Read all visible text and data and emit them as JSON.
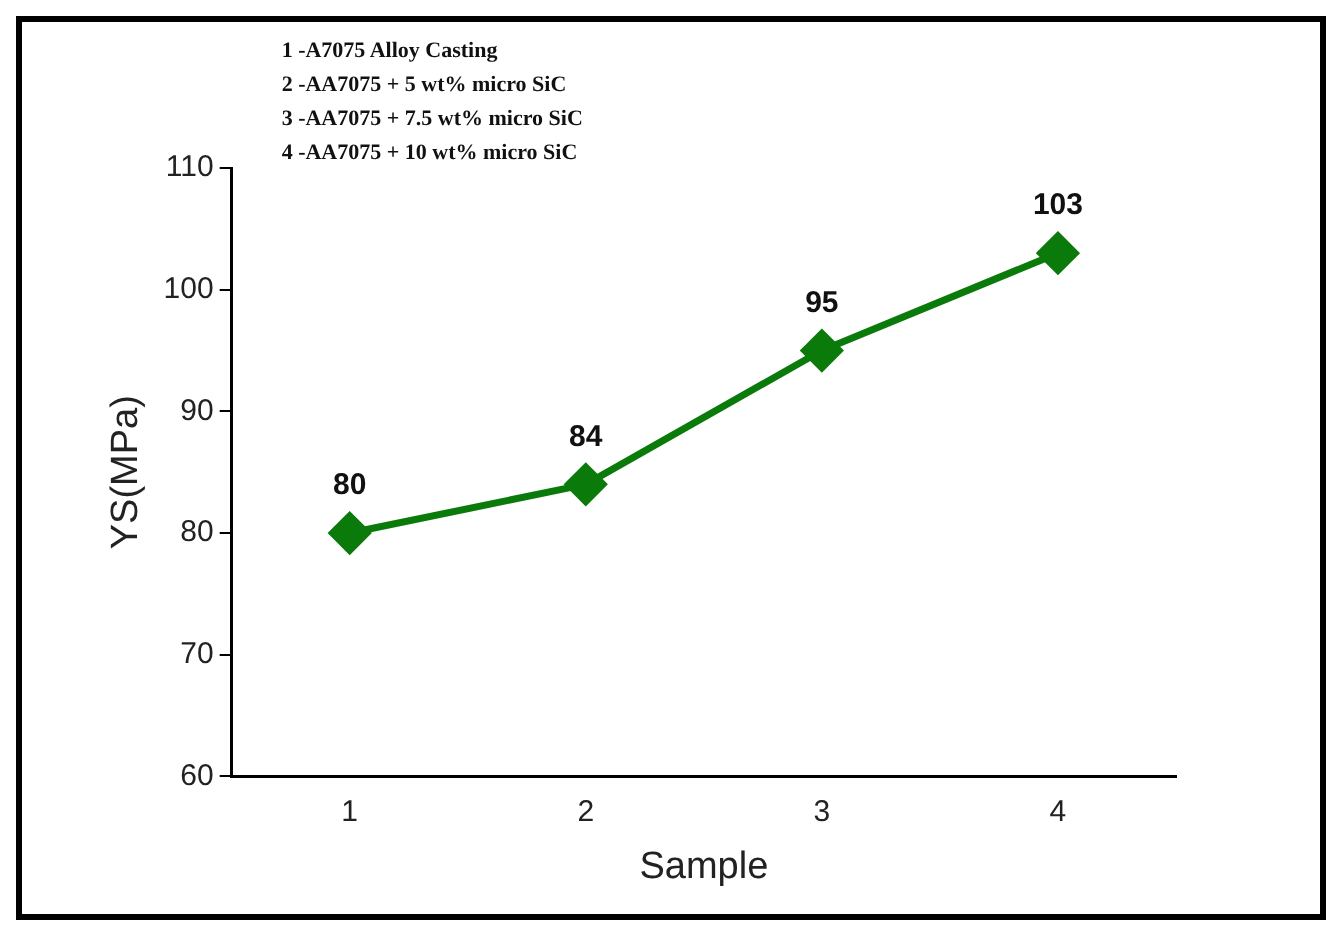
{
  "chart_data": {
    "type": "line",
    "xlabel": "Sample",
    "ylabel": "YS(MPa)",
    "x": [
      1,
      2,
      3,
      4
    ],
    "series": [
      {
        "color": "#0a7a0a",
        "values": [
          80,
          84,
          95,
          103
        ]
      }
    ],
    "xlim": [
      0.5,
      4.5
    ],
    "xticks": [
      1,
      2,
      3,
      4
    ],
    "ylim": [
      60,
      110
    ],
    "yticks": [
      60,
      70,
      80,
      90,
      100,
      110
    ],
    "marker": "diamond",
    "line_style": "solid",
    "grid": false,
    "legend": false,
    "data_labels": true,
    "annotations": [
      "1 -A7075 Alloy Casting",
      "2 -AA7075 + 5 wt% micro SiC",
      "3 -AA7075 + 7.5 wt% micro SiC",
      "4 -AA7075 + 10 wt% micro SiC"
    ]
  }
}
